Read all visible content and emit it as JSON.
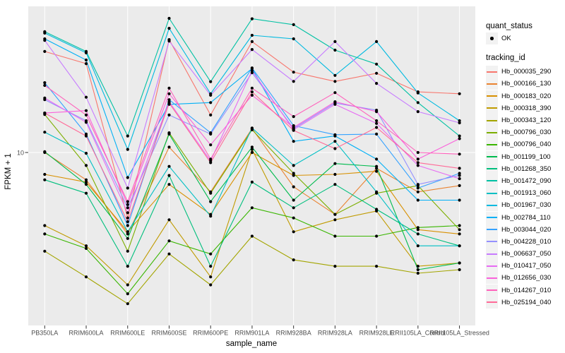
{
  "figure": {
    "y_axis": {
      "title": "FPKM + 1",
      "tick_label": "10"
    },
    "x_axis": {
      "title": "sample_name"
    },
    "legend": {
      "quant_status_title": "quant_status",
      "quant_status_items": [
        {
          "label": "OK"
        }
      ],
      "tracking_id_title": "tracking_id"
    }
  },
  "chart_data": {
    "type": "line",
    "title": "",
    "xlabel": "sample_name",
    "ylabel": "FPKM + 1",
    "yscale": "log10",
    "yticks": [
      10
    ],
    "ylim_log": [
      1.1,
      65
    ],
    "grid": "major-only",
    "legend_position": "right",
    "panel_bg": "#EBEBEB",
    "grid_color": "#FFFFFF",
    "point_color": "#000000",
    "quant_status": "OK",
    "categories": [
      "PB350LA",
      "RRIM600LA",
      "RRIM600LE",
      "RRIM600SE",
      "RRIM600PE",
      "RRIM901LA",
      "RRIM928BA",
      "RRIM928LA",
      "RRIM928LE",
      "RRII105LA_Control",
      "RRII105LA_Stressed"
    ],
    "series": [
      {
        "name": "Hb_000035_290",
        "color": "#F8766D",
        "values": [
          35.5,
          30.5,
          4.4,
          41.2,
          16,
          40.2,
          27.4,
          24.4,
          27,
          21.4,
          20.9
        ]
      },
      {
        "name": "Hb_000166_130",
        "color": "#EA8331",
        "values": [
          10,
          7.1,
          3.6,
          10.7,
          6.1,
          13.5,
          6.5,
          4.6,
          8.2,
          6.1,
          6.6
        ]
      },
      {
        "name": "Hb_000183_020",
        "color": "#D89000",
        "values": [
          7.6,
          6.9,
          3.7,
          6.7,
          4.6,
          10,
          7.5,
          7.6,
          7.9,
          3.8,
          3.6
        ]
      },
      {
        "name": "Hb_000318_390",
        "color": "#C09B00",
        "values": [
          4,
          3.1,
          1.9,
          4.3,
          2.1,
          10.4,
          3.7,
          4.3,
          4.8,
          2.4,
          2.5
        ]
      },
      {
        "name": "Hb_000343_120",
        "color": "#A3A500",
        "values": [
          2.9,
          2.1,
          1.5,
          2.8,
          1.9,
          3.5,
          2.6,
          2.4,
          2.4,
          2.2,
          2.3
        ]
      },
      {
        "name": "Hb_000796_030",
        "color": "#7CAE00",
        "values": [
          16.1,
          8.5,
          2.9,
          12.8,
          6,
          13.3,
          7.7,
          4.6,
          6,
          6.6,
          3.8
        ]
      },
      {
        "name": "Hb_000796_040",
        "color": "#39B600",
        "values": [
          3.6,
          3,
          1.7,
          3.3,
          2.8,
          5,
          4.4,
          3.5,
          3.5,
          3.9,
          4
        ]
      },
      {
        "name": "Hb_001199_100",
        "color": "#00BB4E",
        "values": [
          10.1,
          6.7,
          3.4,
          12.6,
          5.4,
          10.7,
          5.5,
          8.7,
          8.4,
          2.3,
          2.5
        ]
      },
      {
        "name": "Hb_001268_350",
        "color": "#00BF7D",
        "values": [
          7.1,
          6,
          2.4,
          7.5,
          2.4,
          6.9,
          5,
          6.7,
          4.9,
          3.6,
          3.1
        ]
      },
      {
        "name": "Hb_001472_090",
        "color": "#00C1A3",
        "values": [
          45.5,
          35.5,
          12.3,
          53.8,
          24.3,
          53.5,
          49.7,
          36.1,
          30.3,
          18.7,
          12.3
        ]
      },
      {
        "name": "Hb_001913_060",
        "color": "#00BFC4",
        "values": [
          12.9,
          9.9,
          3.7,
          8.4,
          4.5,
          13.6,
          8.5,
          11.5,
          6.1,
          3.1,
          3.1
        ]
      },
      {
        "name": "Hb_001967_030",
        "color": "#00BAE0",
        "values": [
          44.7,
          34.9,
          10.4,
          47.5,
          20.9,
          43.5,
          41.6,
          26.3,
          40.2,
          21.1,
          14.9
        ]
      },
      {
        "name": "Hb_002784_110",
        "color": "#00B0F6",
        "values": [
          41.6,
          31.9,
          7.3,
          18.3,
          18.7,
          28.7,
          11.5,
          12.3,
          9.2,
          5.5,
          5.5
        ]
      },
      {
        "name": "Hb_003044_020",
        "color": "#35A2FF",
        "values": [
          24,
          12.6,
          4,
          19.4,
          12.8,
          28.9,
          14,
          12.5,
          12.6,
          6.4,
          7.7
        ]
      },
      {
        "name": "Hb_004228_010",
        "color": "#9590FF",
        "values": [
          19.4,
          14.9,
          5,
          16,
          12.6,
          27.2,
          13.5,
          18.6,
          17,
          6.7,
          7.5
        ]
      },
      {
        "name": "Hb_006637_050",
        "color": "#C77CFF",
        "values": [
          40.8,
          20,
          6.4,
          40.5,
          20.5,
          36.4,
          24.4,
          40.2,
          23.8,
          16.7,
          14.5
        ]
      },
      {
        "name": "Hb_010417_050",
        "color": "#E76BF3",
        "values": [
          19.8,
          14.6,
          4.7,
          18.9,
          9,
          27.9,
          13.3,
          18.3,
          14.4,
          8.5,
          7.2
        ]
      },
      {
        "name": "Hb_012656_030",
        "color": "#FA62DB",
        "values": [
          16.4,
          16.9,
          5.2,
          20.9,
          11,
          20.5,
          13.7,
          18.9,
          16.7,
          9.2,
          11.9
        ]
      },
      {
        "name": "Hb_014267_010",
        "color": "#FF62BC",
        "values": [
          23.2,
          16,
          5.4,
          22.4,
          9.2,
          22.4,
          15.7,
          21.2,
          14.9,
          10,
          9.8
        ]
      },
      {
        "name": "Hb_025194_040",
        "color": "#FF6A98",
        "values": [
          16.4,
          12.3,
          4.2,
          18.6,
          8.8,
          21.4,
          13.2,
          10.5,
          13.7,
          8.8,
          8.2
        ]
      }
    ]
  }
}
